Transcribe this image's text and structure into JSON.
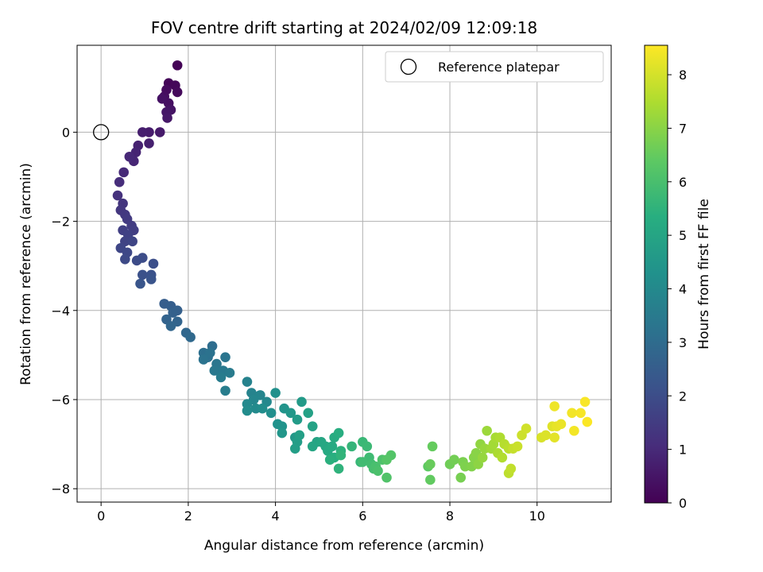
{
  "chart_data": {
    "type": "scatter",
    "title": "FOV centre drift starting at 2024/02/09 12:09:18",
    "xlabel": "Angular distance from reference (arcmin)",
    "ylabel": "Rotation from reference (arcmin)",
    "xlim": [
      -0.55,
      11.7
    ],
    "ylim": [
      -8.3,
      1.95
    ],
    "xticks": [
      0,
      2,
      4,
      6,
      8,
      10
    ],
    "yticks": [
      -8,
      -6,
      -4,
      -2,
      0
    ],
    "grid": true,
    "legend": {
      "placement": "top-right",
      "entries": [
        "Reference platepar"
      ]
    },
    "reference_point": {
      "x": 0,
      "y": 0,
      "label": "Reference platepar"
    },
    "colorbar": {
      "label": "Hours from first FF file",
      "colormap": "viridis",
      "range": [
        0,
        8.55
      ],
      "ticks": [
        0,
        1,
        2,
        3,
        4,
        5,
        6,
        7,
        8
      ]
    },
    "points": [
      [
        1.75,
        1.5,
        0.05
      ],
      [
        1.55,
        1.1,
        0.1
      ],
      [
        1.7,
        1.05,
        0.15
      ],
      [
        1.75,
        0.9,
        0.2
      ],
      [
        1.5,
        0.95,
        0.25
      ],
      [
        1.45,
        0.8,
        0.3
      ],
      [
        1.55,
        0.65,
        0.35
      ],
      [
        1.4,
        0.75,
        0.4
      ],
      [
        1.6,
        0.5,
        0.45
      ],
      [
        1.5,
        0.45,
        0.5
      ],
      [
        1.52,
        0.32,
        0.55
      ],
      [
        1.35,
        0.0,
        0.6
      ],
      [
        1.1,
        0.0,
        0.65
      ],
      [
        0.95,
        0.0,
        0.7
      ],
      [
        1.1,
        -0.25,
        0.75
      ],
      [
        0.85,
        -0.3,
        0.8
      ],
      [
        0.8,
        -0.45,
        0.85
      ],
      [
        0.75,
        -0.65,
        0.9
      ],
      [
        0.65,
        -0.55,
        0.95
      ],
      [
        0.52,
        -0.9,
        1.0
      ],
      [
        0.42,
        -1.12,
        1.1
      ],
      [
        0.38,
        -1.42,
        1.2
      ],
      [
        0.5,
        -1.6,
        1.3
      ],
      [
        0.45,
        -1.75,
        1.35
      ],
      [
        0.55,
        -1.85,
        1.4
      ],
      [
        0.6,
        -1.95,
        1.45
      ],
      [
        0.7,
        -2.1,
        1.5
      ],
      [
        0.75,
        -2.2,
        1.55
      ],
      [
        0.5,
        -2.2,
        1.6
      ],
      [
        0.62,
        -2.3,
        1.65
      ],
      [
        0.55,
        -2.45,
        1.7
      ],
      [
        0.72,
        -2.45,
        1.75
      ],
      [
        0.45,
        -2.6,
        1.8
      ],
      [
        0.6,
        -2.7,
        1.85
      ],
      [
        0.55,
        -2.85,
        1.9
      ],
      [
        0.82,
        -2.88,
        1.95
      ],
      [
        0.95,
        -2.82,
        2.0
      ],
      [
        1.2,
        -2.95,
        2.05
      ],
      [
        0.95,
        -3.2,
        2.1
      ],
      [
        1.15,
        -3.2,
        2.15
      ],
      [
        1.15,
        -3.3,
        2.2
      ],
      [
        0.9,
        -3.4,
        2.25
      ],
      [
        1.45,
        -3.85,
        2.5
      ],
      [
        1.6,
        -3.9,
        2.55
      ],
      [
        1.75,
        -4.0,
        2.6
      ],
      [
        1.65,
        -4.05,
        2.65
      ],
      [
        1.5,
        -4.2,
        2.7
      ],
      [
        1.75,
        -4.25,
        2.75
      ],
      [
        1.6,
        -4.35,
        2.8
      ],
      [
        1.95,
        -4.5,
        2.85
      ],
      [
        2.05,
        -4.6,
        2.9
      ],
      [
        2.55,
        -4.8,
        3.05
      ],
      [
        2.35,
        -4.95,
        3.1
      ],
      [
        2.45,
        -5.05,
        3.15
      ],
      [
        2.5,
        -4.95,
        3.2
      ],
      [
        2.35,
        -5.1,
        3.25
      ],
      [
        2.85,
        -5.05,
        3.3
      ],
      [
        2.65,
        -5.2,
        3.35
      ],
      [
        2.6,
        -5.35,
        3.4
      ],
      [
        2.8,
        -5.35,
        3.45
      ],
      [
        2.95,
        -5.4,
        3.5
      ],
      [
        2.75,
        -5.5,
        3.55
      ],
      [
        2.85,
        -5.8,
        3.6
      ],
      [
        3.35,
        -5.6,
        3.75
      ],
      [
        3.45,
        -5.85,
        3.8
      ],
      [
        3.65,
        -5.9,
        3.85
      ],
      [
        3.5,
        -6.0,
        3.9
      ],
      [
        3.8,
        -6.05,
        3.95
      ],
      [
        3.35,
        -6.1,
        4.0
      ],
      [
        3.55,
        -6.2,
        4.05
      ],
      [
        3.35,
        -6.25,
        4.1
      ],
      [
        3.7,
        -6.2,
        4.15
      ],
      [
        3.9,
        -6.3,
        4.2
      ],
      [
        4.0,
        -5.85,
        4.25
      ],
      [
        4.05,
        -6.55,
        4.3
      ],
      [
        4.15,
        -6.6,
        4.35
      ],
      [
        4.2,
        -6.2,
        4.4
      ],
      [
        4.15,
        -6.75,
        4.45
      ],
      [
        4.35,
        -6.3,
        4.5
      ],
      [
        4.45,
        -6.85,
        4.55
      ],
      [
        4.6,
        -6.05,
        4.6
      ],
      [
        4.5,
        -6.45,
        4.65
      ],
      [
        4.5,
        -6.95,
        4.7
      ],
      [
        4.45,
        -7.1,
        4.75
      ],
      [
        4.55,
        -6.8,
        4.8
      ],
      [
        4.75,
        -6.3,
        4.85
      ],
      [
        4.85,
        -6.6,
        4.9
      ],
      [
        4.95,
        -6.95,
        4.95
      ],
      [
        4.85,
        -7.05,
        5.0
      ],
      [
        5.05,
        -6.95,
        5.05
      ],
      [
        5.15,
        -7.05,
        5.1
      ],
      [
        5.2,
        -7.15,
        5.15
      ],
      [
        5.3,
        -7.05,
        5.2
      ],
      [
        5.35,
        -6.85,
        5.25
      ],
      [
        5.45,
        -6.75,
        5.3
      ],
      [
        5.35,
        -7.3,
        5.35
      ],
      [
        5.25,
        -7.35,
        5.4
      ],
      [
        5.5,
        -7.15,
        5.45
      ],
      [
        5.45,
        -7.55,
        5.5
      ],
      [
        5.5,
        -7.25,
        5.55
      ],
      [
        5.75,
        -7.05,
        5.6
      ],
      [
        5.95,
        -7.4,
        5.65
      ],
      [
        6.0,
        -6.95,
        5.7
      ],
      [
        6.1,
        -7.05,
        5.75
      ],
      [
        6.15,
        -7.3,
        5.8
      ],
      [
        6.0,
        -7.4,
        5.85
      ],
      [
        6.2,
        -7.45,
        5.9
      ],
      [
        6.25,
        -7.55,
        5.95
      ],
      [
        6.3,
        -7.5,
        6.0
      ],
      [
        6.35,
        -7.6,
        6.05
      ],
      [
        6.45,
        -7.35,
        6.1
      ],
      [
        6.55,
        -7.75,
        6.15
      ],
      [
        6.65,
        -7.25,
        6.2
      ],
      [
        6.55,
        -7.35,
        6.25
      ],
      [
        7.5,
        -7.5,
        6.4
      ],
      [
        7.55,
        -7.8,
        6.45
      ],
      [
        7.6,
        -7.05,
        6.5
      ],
      [
        7.55,
        -7.45,
        6.55
      ],
      [
        8.0,
        -7.45,
        6.65
      ],
      [
        8.1,
        -7.35,
        6.7
      ],
      [
        8.25,
        -7.75,
        6.75
      ],
      [
        8.3,
        -7.4,
        6.8
      ],
      [
        8.35,
        -7.5,
        6.85
      ],
      [
        8.5,
        -7.5,
        6.9
      ],
      [
        8.55,
        -7.3,
        6.95
      ],
      [
        8.6,
        -7.2,
        7.0
      ],
      [
        8.65,
        -7.45,
        7.05
      ],
      [
        8.7,
        -7.0,
        7.1
      ],
      [
        8.75,
        -7.3,
        7.15
      ],
      [
        8.8,
        -7.1,
        7.2
      ],
      [
        8.85,
        -6.7,
        7.25
      ],
      [
        8.95,
        -7.1,
        7.3
      ],
      [
        9.0,
        -7.0,
        7.35
      ],
      [
        9.05,
        -6.85,
        7.4
      ],
      [
        9.1,
        -7.2,
        7.45
      ],
      [
        9.15,
        -6.85,
        7.5
      ],
      [
        9.2,
        -7.3,
        7.55
      ],
      [
        9.25,
        -7.0,
        7.6
      ],
      [
        9.35,
        -7.1,
        7.65
      ],
      [
        9.35,
        -7.65,
        7.7
      ],
      [
        9.4,
        -7.55,
        7.75
      ],
      [
        9.45,
        -7.1,
        7.8
      ],
      [
        9.55,
        -7.05,
        7.85
      ],
      [
        9.65,
        -6.8,
        7.9
      ],
      [
        9.75,
        -6.65,
        7.95
      ],
      [
        10.1,
        -6.85,
        8.05
      ],
      [
        10.2,
        -6.8,
        8.1
      ],
      [
        10.35,
        -6.6,
        8.15
      ],
      [
        10.4,
        -6.85,
        8.2
      ],
      [
        10.45,
        -6.6,
        8.25
      ],
      [
        10.55,
        -6.55,
        8.3
      ],
      [
        10.4,
        -6.15,
        8.35
      ],
      [
        10.8,
        -6.3,
        8.4
      ],
      [
        10.85,
        -6.7,
        8.42
      ],
      [
        11.0,
        -6.3,
        8.45
      ],
      [
        11.1,
        -6.05,
        8.48
      ],
      [
        11.15,
        -6.5,
        8.52
      ]
    ]
  }
}
